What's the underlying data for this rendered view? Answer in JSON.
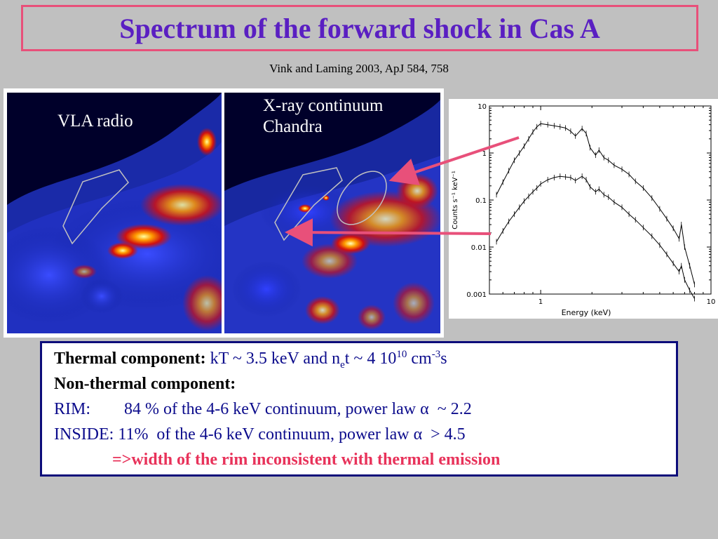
{
  "title": "Spectrum of the forward shock in Cas A",
  "citation": "Vink and Laming 2003, ApJ 584, 758",
  "images": {
    "left_label": "VLA radio",
    "right_label_line1": "X-ray continuum",
    "right_label_line2": "Chandra"
  },
  "colors": {
    "title": "#5a1fc2",
    "title_border": "#e8507a",
    "arrow": "#e8507a",
    "box_border": "#0c0c7a",
    "body_text": "#0c0c8c",
    "conclusion": "#e8325a"
  },
  "chart_data": {
    "type": "line",
    "xlabel": "Energy (keV)",
    "ylabel": "Counts s⁻¹ keV⁻¹",
    "xscale": "log",
    "yscale": "log",
    "xlim": [
      0.5,
      10
    ],
    "ylim": [
      0.001,
      10
    ],
    "x_ticks": [
      "1",
      "10"
    ],
    "y_ticks": [
      "10",
      "1",
      "0.1",
      "0.01",
      "0.001"
    ],
    "grid": false,
    "series": [
      {
        "x": [
          0.55,
          0.6,
          0.65,
          0.7,
          0.75,
          0.8,
          0.85,
          0.9,
          0.95,
          1.0,
          1.1,
          1.2,
          1.3,
          1.4,
          1.5,
          1.6,
          1.75,
          1.85,
          1.95,
          2.1,
          2.2,
          2.35,
          2.5,
          2.7,
          3.0,
          3.3,
          3.6,
          4.0,
          4.5,
          5.0,
          5.5,
          6.0,
          6.5,
          6.7,
          7.0,
          7.5,
          8.0
        ],
        "y": [
          0.13,
          0.24,
          0.42,
          0.7,
          1.0,
          1.4,
          2.0,
          2.8,
          3.6,
          4.2,
          4.0,
          3.8,
          3.6,
          3.4,
          2.9,
          2.3,
          3.3,
          2.6,
          1.3,
          0.9,
          1.15,
          0.8,
          0.7,
          0.55,
          0.45,
          0.35,
          0.25,
          0.18,
          0.11,
          0.065,
          0.04,
          0.025,
          0.015,
          0.03,
          0.01,
          0.004,
          0.0016
        ]
      },
      {
        "x": [
          0.55,
          0.6,
          0.65,
          0.7,
          0.75,
          0.8,
          0.85,
          0.9,
          0.95,
          1.0,
          1.1,
          1.2,
          1.3,
          1.4,
          1.5,
          1.6,
          1.75,
          1.85,
          1.95,
          2.1,
          2.2,
          2.35,
          2.5,
          2.7,
          3.0,
          3.3,
          3.6,
          4.0,
          4.5,
          5.0,
          5.5,
          6.0,
          6.5,
          6.7,
          7.0,
          7.5,
          8.0
        ],
        "y": [
          0.013,
          0.022,
          0.035,
          0.05,
          0.07,
          0.095,
          0.12,
          0.15,
          0.18,
          0.22,
          0.27,
          0.3,
          0.32,
          0.31,
          0.3,
          0.26,
          0.32,
          0.27,
          0.19,
          0.15,
          0.17,
          0.13,
          0.115,
          0.09,
          0.07,
          0.05,
          0.038,
          0.026,
          0.017,
          0.011,
          0.007,
          0.0045,
          0.003,
          0.004,
          0.002,
          0.0012,
          0.0008
        ]
      }
    ]
  },
  "info": {
    "thermal_label": "Thermal component:",
    "thermal_pre": "kT ~ 3.5 keV and n",
    "thermal_sub": "e",
    "thermal_mid": "t ~ 4 10",
    "thermal_sup1": "10",
    "thermal_unit": " cm",
    "thermal_sup2": "-3",
    "thermal_end": "s",
    "nonthermal_label": "Non-thermal component:",
    "rim_label": "RIM:",
    "rim_text": "84 % of the 4-6 keV continuum, power law α  ~ 2.2",
    "inside_label": "INSIDE:",
    "inside_text": "11%  of the 4-6 keV continuum, power law α  > 4.5",
    "conclusion": "=>width of the rim inconsistent with thermal emission"
  }
}
